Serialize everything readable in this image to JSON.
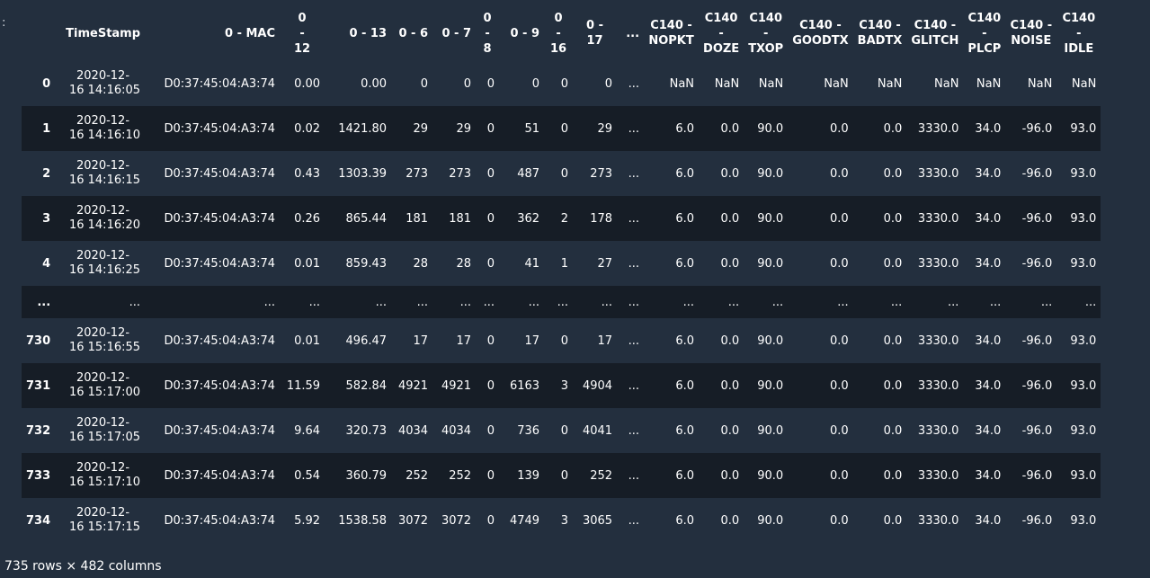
{
  "prompt": ":",
  "columns": {
    "ts": "TimeStamp",
    "mac": "0 - MAC",
    "c12": [
      "0",
      "-",
      "12"
    ],
    "c13": "0 - 13",
    "c6": "0 - 6",
    "c7": "0 - 7",
    "c8": [
      "0",
      "-",
      "8"
    ],
    "c9": "0 - 9",
    "c16": [
      "0",
      "-",
      "16"
    ],
    "c17": [
      "0 -",
      "17"
    ],
    "ell": "...",
    "nopkt": [
      "C140 -",
      "NOPKT"
    ],
    "doze": [
      "C140",
      "-",
      "DOZE"
    ],
    "txop": [
      "C140",
      "-",
      "TXOP"
    ],
    "goodtx": [
      "C140 -",
      "GOODTX"
    ],
    "badtx": [
      "C140 -",
      "BADTX"
    ],
    "glitch": [
      "C140 -",
      "GLITCH"
    ],
    "plcp": [
      "C140",
      "-",
      "PLCP"
    ],
    "noise": [
      "C140 -",
      "NOISE"
    ],
    "idle": [
      "C140",
      "-",
      "IDLE"
    ]
  },
  "rows": [
    {
      "idx": "0",
      "date": "2020-12-",
      "time": "16 14:16:05",
      "mac": "D0:37:45:04:A3:74",
      "c12": "0.00",
      "c13": "0.00",
      "c6": "0",
      "c7": "0",
      "c8": "0",
      "c9": "0",
      "c16": "0",
      "c17": "0",
      "ell": "...",
      "nopkt": "NaN",
      "doze": "NaN",
      "txop": "NaN",
      "goodtx": "NaN",
      "badtx": "NaN",
      "glitch": "NaN",
      "plcp": "NaN",
      "noise": "NaN",
      "idle": "NaN"
    },
    {
      "idx": "1",
      "date": "2020-12-",
      "time": "16 14:16:10",
      "mac": "D0:37:45:04:A3:74",
      "c12": "0.02",
      "c13": "1421.80",
      "c6": "29",
      "c7": "29",
      "c8": "0",
      "c9": "51",
      "c16": "0",
      "c17": "29",
      "ell": "...",
      "nopkt": "6.0",
      "doze": "0.0",
      "txop": "90.0",
      "goodtx": "0.0",
      "badtx": "0.0",
      "glitch": "3330.0",
      "plcp": "34.0",
      "noise": "-96.0",
      "idle": "93.0"
    },
    {
      "idx": "2",
      "date": "2020-12-",
      "time": "16 14:16:15",
      "mac": "D0:37:45:04:A3:74",
      "c12": "0.43",
      "c13": "1303.39",
      "c6": "273",
      "c7": "273",
      "c8": "0",
      "c9": "487",
      "c16": "0",
      "c17": "273",
      "ell": "...",
      "nopkt": "6.0",
      "doze": "0.0",
      "txop": "90.0",
      "goodtx": "0.0",
      "badtx": "0.0",
      "glitch": "3330.0",
      "plcp": "34.0",
      "noise": "-96.0",
      "idle": "93.0"
    },
    {
      "idx": "3",
      "date": "2020-12-",
      "time": "16 14:16:20",
      "mac": "D0:37:45:04:A3:74",
      "c12": "0.26",
      "c13": "865.44",
      "c6": "181",
      "c7": "181",
      "c8": "0",
      "c9": "362",
      "c16": "2",
      "c17": "178",
      "ell": "...",
      "nopkt": "6.0",
      "doze": "0.0",
      "txop": "90.0",
      "goodtx": "0.0",
      "badtx": "0.0",
      "glitch": "3330.0",
      "plcp": "34.0",
      "noise": "-96.0",
      "idle": "93.0"
    },
    {
      "idx": "4",
      "date": "2020-12-",
      "time": "16 14:16:25",
      "mac": "D0:37:45:04:A3:74",
      "c12": "0.01",
      "c13": "859.43",
      "c6": "28",
      "c7": "28",
      "c8": "0",
      "c9": "41",
      "c16": "1",
      "c17": "27",
      "ell": "...",
      "nopkt": "6.0",
      "doze": "0.0",
      "txop": "90.0",
      "goodtx": "0.0",
      "badtx": "0.0",
      "glitch": "3330.0",
      "plcp": "34.0",
      "noise": "-96.0",
      "idle": "93.0"
    },
    {
      "ellipsis": true,
      "text": "..."
    },
    {
      "idx": "730",
      "date": "2020-12-",
      "time": "16 15:16:55",
      "mac": "D0:37:45:04:A3:74",
      "c12": "0.01",
      "c13": "496.47",
      "c6": "17",
      "c7": "17",
      "c8": "0",
      "c9": "17",
      "c16": "0",
      "c17": "17",
      "ell": "...",
      "nopkt": "6.0",
      "doze": "0.0",
      "txop": "90.0",
      "goodtx": "0.0",
      "badtx": "0.0",
      "glitch": "3330.0",
      "plcp": "34.0",
      "noise": "-96.0",
      "idle": "93.0"
    },
    {
      "idx": "731",
      "date": "2020-12-",
      "time": "16 15:17:00",
      "mac": "D0:37:45:04:A3:74",
      "c12": "11.59",
      "c13": "582.84",
      "c6": "4921",
      "c7": "4921",
      "c8": "0",
      "c9": "6163",
      "c16": "3",
      "c17": "4904",
      "ell": "...",
      "nopkt": "6.0",
      "doze": "0.0",
      "txop": "90.0",
      "goodtx": "0.0",
      "badtx": "0.0",
      "glitch": "3330.0",
      "plcp": "34.0",
      "noise": "-96.0",
      "idle": "93.0"
    },
    {
      "idx": "732",
      "date": "2020-12-",
      "time": "16 15:17:05",
      "mac": "D0:37:45:04:A3:74",
      "c12": "9.64",
      "c13": "320.73",
      "c6": "4034",
      "c7": "4034",
      "c8": "0",
      "c9": "736",
      "c16": "0",
      "c17": "4041",
      "ell": "...",
      "nopkt": "6.0",
      "doze": "0.0",
      "txop": "90.0",
      "goodtx": "0.0",
      "badtx": "0.0",
      "glitch": "3330.0",
      "plcp": "34.0",
      "noise": "-96.0",
      "idle": "93.0"
    },
    {
      "idx": "733",
      "date": "2020-12-",
      "time": "16 15:17:10",
      "mac": "D0:37:45:04:A3:74",
      "c12": "0.54",
      "c13": "360.79",
      "c6": "252",
      "c7": "252",
      "c8": "0",
      "c9": "139",
      "c16": "0",
      "c17": "252",
      "ell": "...",
      "nopkt": "6.0",
      "doze": "0.0",
      "txop": "90.0",
      "goodtx": "0.0",
      "badtx": "0.0",
      "glitch": "3330.0",
      "plcp": "34.0",
      "noise": "-96.0",
      "idle": "93.0"
    },
    {
      "idx": "734",
      "date": "2020-12-",
      "time": "16 15:17:15",
      "mac": "D0:37:45:04:A3:74",
      "c12": "5.92",
      "c13": "1538.58",
      "c6": "3072",
      "c7": "3072",
      "c8": "0",
      "c9": "4749",
      "c16": "3",
      "c17": "3065",
      "ell": "...",
      "nopkt": "6.0",
      "doze": "0.0",
      "txop": "90.0",
      "goodtx": "0.0",
      "badtx": "0.0",
      "glitch": "3330.0",
      "plcp": "34.0",
      "noise": "-96.0",
      "idle": "93.0"
    }
  ],
  "footer": "735 rows × 482 columns"
}
